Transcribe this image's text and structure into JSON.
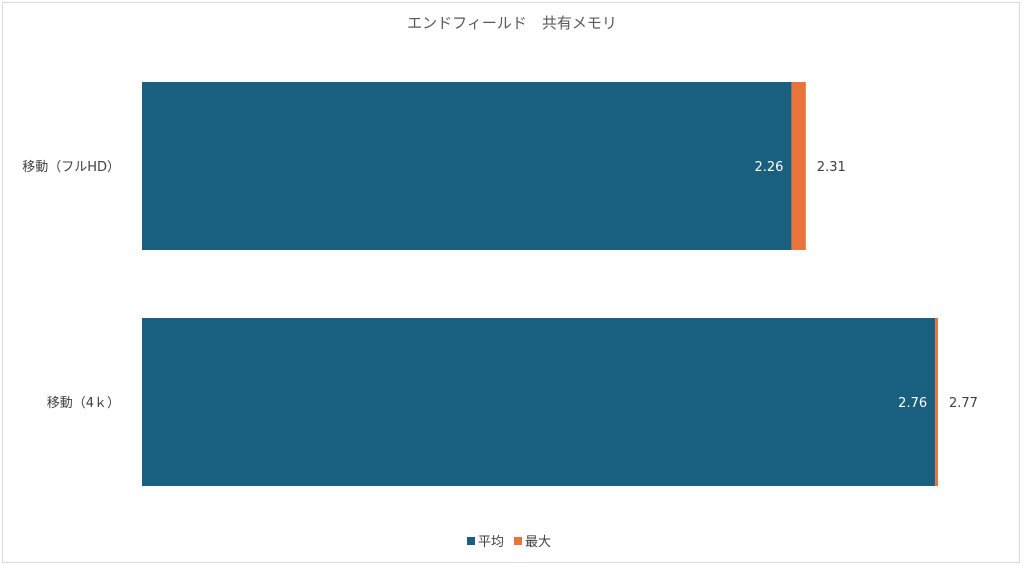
{
  "chart_data": {
    "type": "bar",
    "orientation": "horizontal",
    "stacked": true,
    "title": "エンドフィールド　共有メモリ",
    "categories": [
      "移動（フルHD）",
      "移動（4ｋ）"
    ],
    "series": [
      {
        "name": "平均",
        "values": [
          2.26,
          2.76
        ],
        "value_labels": [
          "2.26",
          "2.76"
        ],
        "color": "#185F80"
      },
      {
        "name": "最大",
        "values": [
          0.05,
          0.01
        ],
        "value_labels": [
          "2.31",
          "2.77"
        ],
        "color": "#E8743B"
      }
    ],
    "xlim": [
      0,
      2.77
    ],
    "grid": false,
    "legend_position": "bottom"
  }
}
